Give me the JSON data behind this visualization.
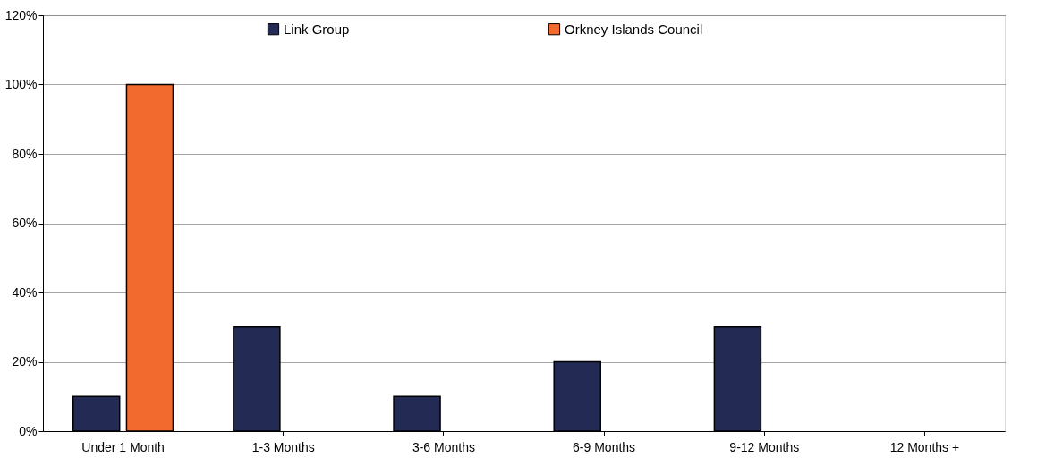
{
  "chart_data": {
    "type": "bar",
    "categories": [
      "Under 1 Month",
      "1-3 Months",
      "3-6 Months",
      "6-9 Months",
      "9-12 Months",
      "12 Months +"
    ],
    "series": [
      {
        "name": "Link Group",
        "color": "#232b55",
        "values": [
          10,
          30,
          10,
          20,
          30,
          null
        ]
      },
      {
        "name": "Orkney Islands Council",
        "color": "#f26a2e",
        "values": [
          100,
          null,
          null,
          null,
          null,
          null
        ]
      }
    ],
    "ylim": [
      0,
      120
    ],
    "yticks": [
      {
        "value": 0,
        "label": "0%"
      },
      {
        "value": 20,
        "label": "20%"
      },
      {
        "value": 40,
        "label": "40%"
      },
      {
        "value": 60,
        "label": "60%"
      },
      {
        "value": 80,
        "label": "80%"
      },
      {
        "value": 100,
        "label": "100%"
      },
      {
        "value": 120,
        "label": "120%"
      }
    ],
    "grid": "y",
    "legend": "top"
  }
}
